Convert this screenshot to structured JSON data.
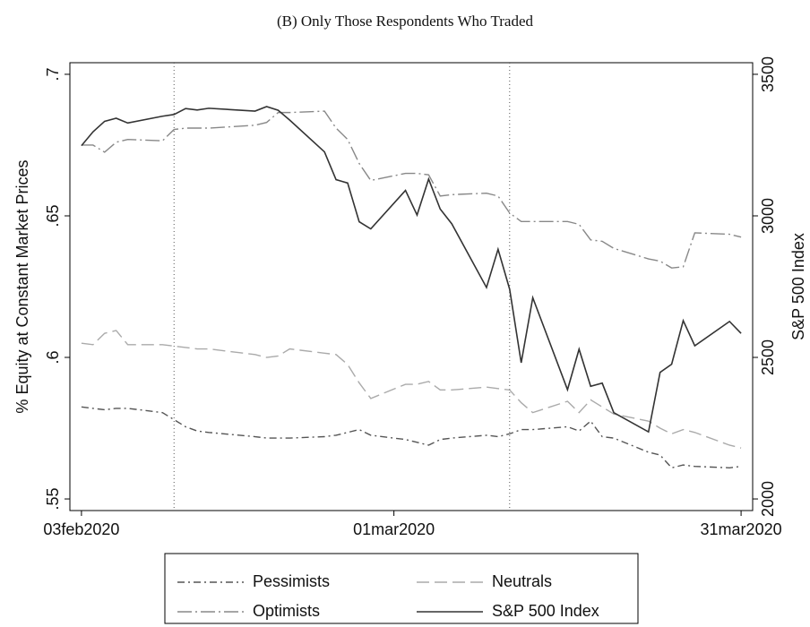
{
  "chart_data": {
    "type": "line",
    "title": "(B) Only Those Respondents Who Traded",
    "y_label": "% Equity at Constant Market Prices",
    "y2_label": "S&P 500 Index",
    "x": [
      "2020-02-03",
      "2020-02-04",
      "2020-02-05",
      "2020-02-06",
      "2020-02-07",
      "2020-02-10",
      "2020-02-11",
      "2020-02-12",
      "2020-02-13",
      "2020-02-14",
      "2020-02-18",
      "2020-02-19",
      "2020-02-20",
      "2020-02-21",
      "2020-02-24",
      "2020-02-25",
      "2020-02-26",
      "2020-02-27",
      "2020-02-28",
      "2020-03-02",
      "2020-03-03",
      "2020-03-04",
      "2020-03-05",
      "2020-03-06",
      "2020-03-09",
      "2020-03-10",
      "2020-03-11",
      "2020-03-12",
      "2020-03-13",
      "2020-03-16",
      "2020-03-17",
      "2020-03-18",
      "2020-03-19",
      "2020-03-20",
      "2020-03-23",
      "2020-03-24",
      "2020-03-25",
      "2020-03-26",
      "2020-03-27",
      "2020-03-30",
      "2020-03-31"
    ],
    "series": [
      {
        "name": "Pessimists",
        "color": "#555555",
        "dash": "dash-dot",
        "values": [
          0.5825,
          0.582,
          0.5815,
          0.582,
          0.582,
          0.5805,
          0.578,
          0.5755,
          0.574,
          0.5735,
          0.572,
          0.5715,
          0.5715,
          0.5715,
          0.572,
          0.5725,
          0.5735,
          0.5745,
          0.5725,
          0.571,
          0.57,
          0.569,
          0.571,
          0.5715,
          0.5725,
          0.572,
          0.573,
          0.5745,
          0.5745,
          0.5755,
          0.574,
          0.5775,
          0.572,
          0.5715,
          0.5665,
          0.5655,
          0.561,
          0.562,
          0.5615,
          0.561,
          0.5615
        ]
      },
      {
        "name": "Neutrals",
        "color": "#aaaaaa",
        "dash": "dash",
        "values": [
          0.605,
          0.6045,
          0.6085,
          0.6095,
          0.6045,
          0.6045,
          0.604,
          0.6035,
          0.603,
          0.603,
          0.601,
          0.6,
          0.6005,
          0.603,
          0.6015,
          0.601,
          0.5975,
          0.591,
          0.5855,
          0.5905,
          0.5905,
          0.5915,
          0.5885,
          0.5885,
          0.5895,
          0.589,
          0.5885,
          0.584,
          0.5805,
          0.5845,
          0.5805,
          0.585,
          0.5825,
          0.58,
          0.5775,
          0.575,
          0.573,
          0.5745,
          0.5735,
          0.569,
          0.568
        ]
      },
      {
        "name": "Optimists",
        "color": "#888888",
        "dash": "long-dash-dot",
        "values": [
          0.675,
          0.675,
          0.6725,
          0.676,
          0.677,
          0.6765,
          0.6805,
          0.681,
          0.681,
          0.681,
          0.682,
          0.683,
          0.6865,
          0.6865,
          0.687,
          0.681,
          0.677,
          0.6685,
          0.6625,
          0.665,
          0.665,
          0.6645,
          0.657,
          0.6575,
          0.658,
          0.657,
          0.651,
          0.648,
          0.648,
          0.648,
          0.647,
          0.6415,
          0.641,
          0.6385,
          0.6348,
          0.634,
          0.6316,
          0.632,
          0.644,
          0.6435,
          0.6425
        ]
      },
      {
        "name": "S&P 500 Index",
        "color": "#333333",
        "dash": "solid",
        "axis": "y2",
        "values": [
          3248,
          3297,
          3334,
          3345,
          3328,
          3352,
          3358,
          3379,
          3374,
          3380,
          3370,
          3386,
          3373,
          3338,
          3226,
          3128,
          3116,
          2979,
          2954,
          3090,
          3003,
          3130,
          3024,
          2972,
          2747,
          2882,
          2741,
          2481,
          2711,
          2386,
          2529,
          2398,
          2409,
          2305,
          2237,
          2447,
          2476,
          2630,
          2541,
          2627,
          2585
        ]
      }
    ],
    "xlim": [
      "2020-02-02",
      "2020-04-01"
    ],
    "xticks": [
      {
        "value": "2020-02-03",
        "label": "03feb2020"
      },
      {
        "value": "2020-03-01",
        "label": "01mar2020"
      },
      {
        "value": "2020-03-31",
        "label": "31mar2020"
      }
    ],
    "ylim": [
      0.5459,
      0.7041
    ],
    "yticks": [
      {
        "value": 0.55,
        "label": ".55"
      },
      {
        "value": 0.6,
        "label": ".6"
      },
      {
        "value": 0.65,
        "label": ".65"
      },
      {
        "value": 0.7,
        "label": ".7"
      }
    ],
    "y2lim": [
      1959,
      3541
    ],
    "y2ticks": [
      2000,
      2500,
      3000,
      3500
    ],
    "vlines": [
      "2020-02-11",
      "2020-03-11"
    ],
    "grid": false
  }
}
